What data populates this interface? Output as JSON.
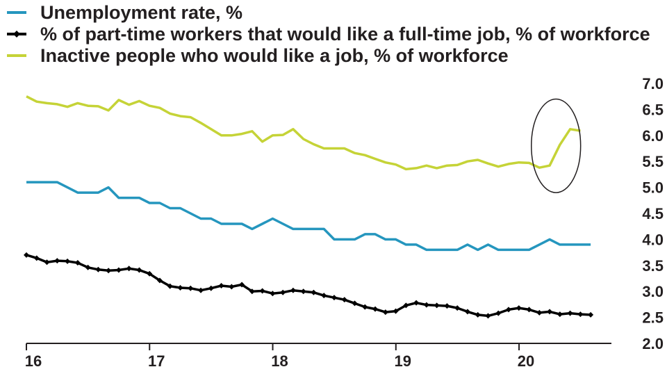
{
  "chart_data": {
    "type": "line",
    "x_unit": "year",
    "xlim": [
      2016,
      2020.75
    ],
    "ylim": [
      2.0,
      7.0
    ],
    "y_axis_side": "right",
    "grid": false,
    "legend_position": "top-left",
    "x_ticks": [
      {
        "value": 2016,
        "label": "16"
      },
      {
        "value": 2017,
        "label": "17"
      },
      {
        "value": 2018,
        "label": "18"
      },
      {
        "value": 2019,
        "label": "19"
      },
      {
        "value": 2020,
        "label": "20"
      }
    ],
    "y_ticks": [
      {
        "value": 2.0,
        "label": "2.0"
      },
      {
        "value": 2.5,
        "label": "2.5"
      },
      {
        "value": 3.0,
        "label": "3.0"
      },
      {
        "value": 3.5,
        "label": "3.5"
      },
      {
        "value": 4.0,
        "label": "4.0"
      },
      {
        "value": 4.5,
        "label": "4.5"
      },
      {
        "value": 5.0,
        "label": "5.0"
      },
      {
        "value": 5.5,
        "label": "5.5"
      },
      {
        "value": 6.0,
        "label": "6.0"
      },
      {
        "value": 6.5,
        "label": "6.5"
      },
      {
        "value": 7.0,
        "label": "7.0"
      }
    ],
    "x_start": 2016.0,
    "x_step": 0.0833,
    "series": [
      {
        "name": "Unemployment rate, %",
        "color": "#2596be",
        "marker": "none",
        "values": [
          5.1,
          5.1,
          5.1,
          5.1,
          5.0,
          4.9,
          4.9,
          4.9,
          5.0,
          4.8,
          4.8,
          4.8,
          4.7,
          4.7,
          4.6,
          4.6,
          4.5,
          4.4,
          4.4,
          4.3,
          4.3,
          4.3,
          4.2,
          4.3,
          4.4,
          4.3,
          4.2,
          4.2,
          4.2,
          4.2,
          4.0,
          4.0,
          4.0,
          4.1,
          4.1,
          4.0,
          4.0,
          3.9,
          3.9,
          3.8,
          3.8,
          3.8,
          3.8,
          3.9,
          3.8,
          3.9,
          3.8,
          3.8,
          3.8,
          3.8,
          3.9,
          4.0,
          3.9,
          3.9,
          3.9,
          3.9
        ]
      },
      {
        "name": "% of part-time workers that would like a full-time job, % of workforce",
        "color": "#000000",
        "marker": "diamond",
        "values": [
          3.7,
          3.64,
          3.56,
          3.59,
          3.58,
          3.55,
          3.46,
          3.42,
          3.4,
          3.41,
          3.44,
          3.41,
          3.34,
          3.21,
          3.1,
          3.07,
          3.06,
          3.02,
          3.06,
          3.11,
          3.09,
          3.13,
          3.0,
          3.01,
          2.96,
          2.98,
          3.02,
          3.0,
          2.98,
          2.92,
          2.88,
          2.84,
          2.77,
          2.7,
          2.66,
          2.6,
          2.62,
          2.73,
          2.78,
          2.74,
          2.73,
          2.72,
          2.68,
          2.61,
          2.55,
          2.53,
          2.58,
          2.65,
          2.68,
          2.65,
          2.59,
          2.61,
          2.56,
          2.58,
          2.56,
          2.55
        ]
      },
      {
        "name": "Inactive people who would like a job, % of workforce",
        "color": "#c5d337",
        "marker": "none",
        "values": [
          6.75,
          6.65,
          6.62,
          6.6,
          6.55,
          6.62,
          6.57,
          6.56,
          6.48,
          6.68,
          6.59,
          6.66,
          6.57,
          6.53,
          6.42,
          6.37,
          6.35,
          6.24,
          6.12,
          6.0,
          6.0,
          6.03,
          6.08,
          5.88,
          6.0,
          6.01,
          6.12,
          5.93,
          5.83,
          5.75,
          5.75,
          5.75,
          5.66,
          5.62,
          5.55,
          5.48,
          5.44,
          5.35,
          5.37,
          5.42,
          5.37,
          5.42,
          5.43,
          5.5,
          5.53,
          5.46,
          5.4,
          5.45,
          5.48,
          5.47,
          5.38,
          5.42,
          5.82,
          6.12,
          6.09
        ]
      }
    ],
    "annotations": [
      {
        "type": "ellipse",
        "around_series": 2,
        "x_range": [
          2020.1,
          2020.5
        ],
        "y_range": [
          4.9,
          6.7
        ],
        "color": "#231f20"
      }
    ]
  }
}
